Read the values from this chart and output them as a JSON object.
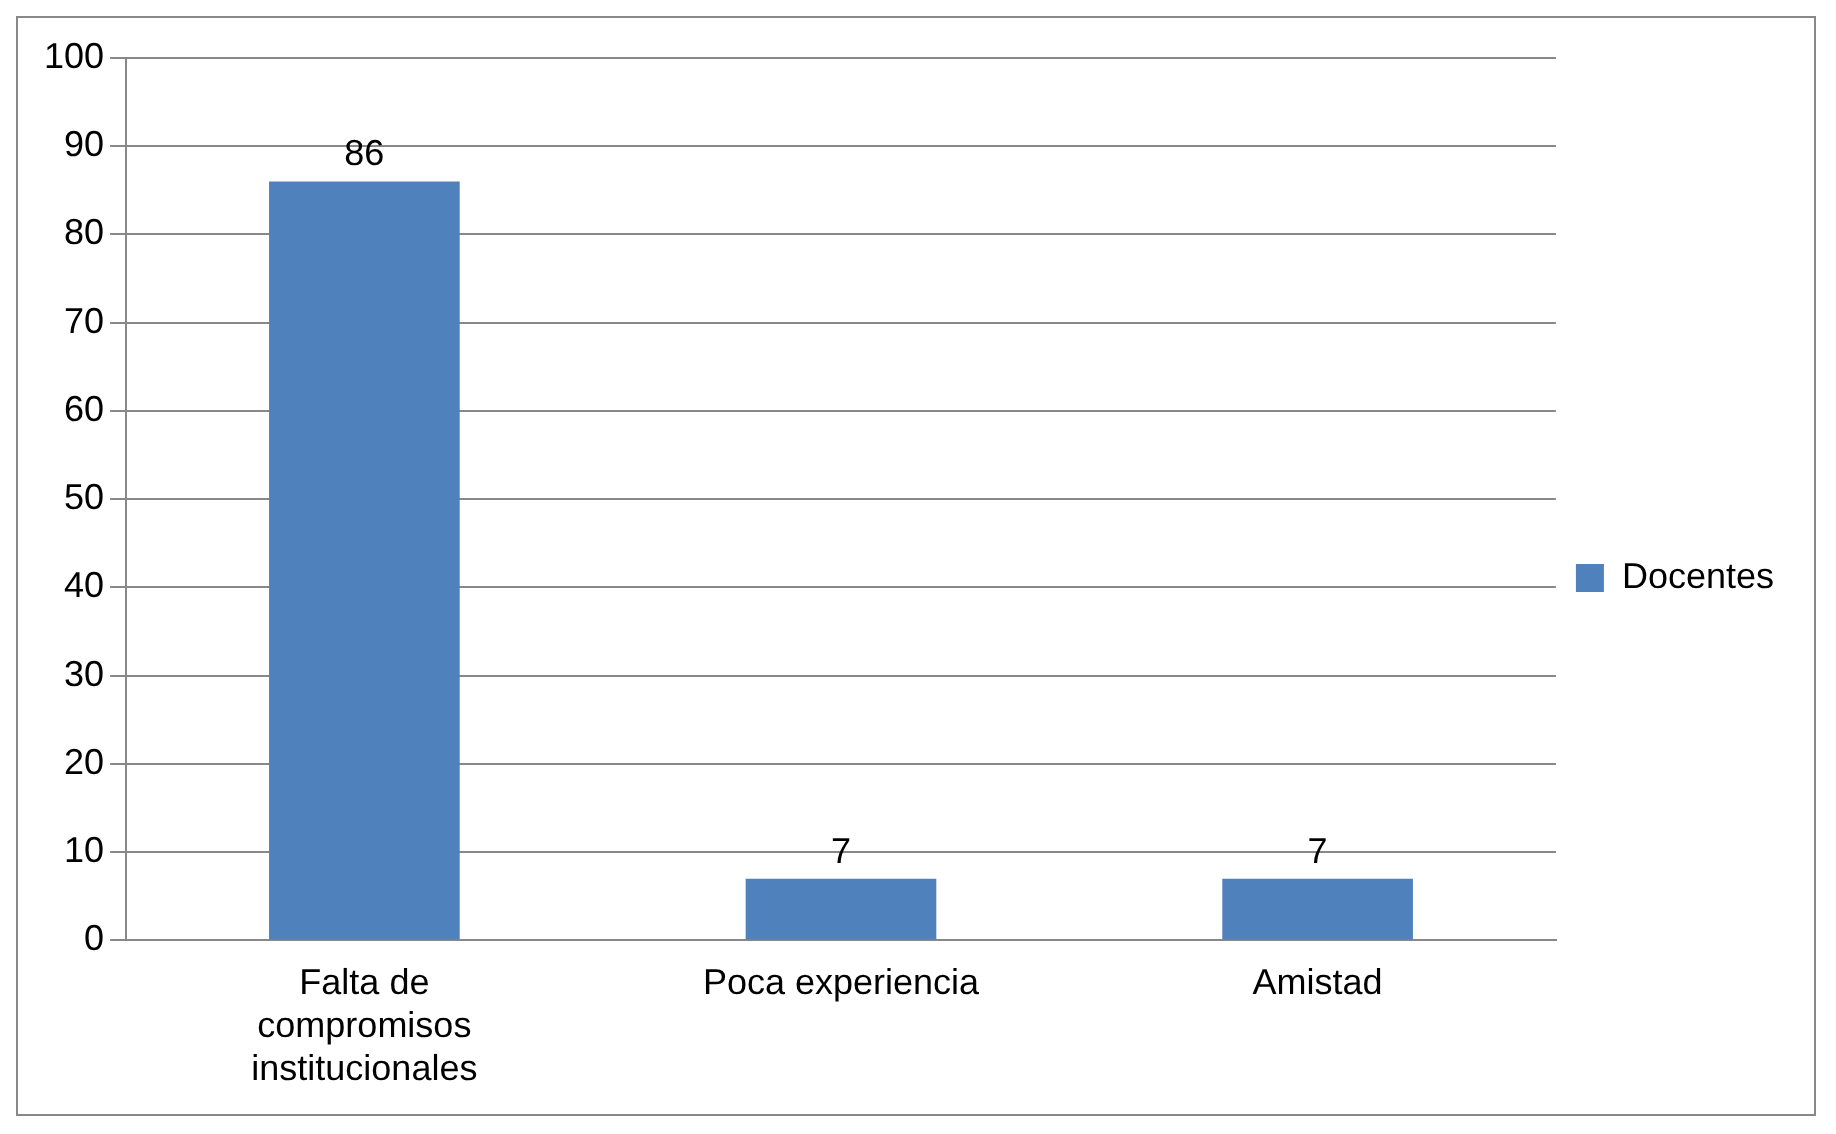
{
  "chart_data": {
    "type": "bar",
    "categories": [
      "Falta de compromisos institucionales",
      "Poca experiencia",
      "Amistad"
    ],
    "series": [
      {
        "name": "Docentes",
        "color": "#4f81bd",
        "values": [
          86,
          7,
          7
        ]
      }
    ],
    "ylim": [
      0,
      100
    ],
    "yticks": [
      0,
      10,
      20,
      30,
      40,
      50,
      60,
      70,
      80,
      90,
      100
    ],
    "grid": "y",
    "legend": "right",
    "data_labels": true
  }
}
